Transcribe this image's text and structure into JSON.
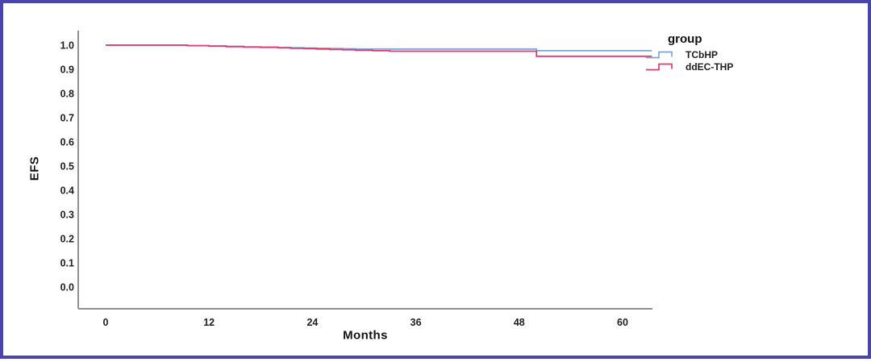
{
  "frame": {
    "border_color": "#4A44B2",
    "background_color": "#FFFFFF"
  },
  "chart_data": {
    "type": "line",
    "subtype": "kaplan_meier_step",
    "title": "",
    "xlabel": "Months",
    "ylabel": "EFS",
    "x_ticks": [
      0,
      12,
      24,
      36,
      48,
      60
    ],
    "y_tick_labels": [
      "1.0",
      "0.9",
      "0.8",
      "0.7",
      "0.6",
      "0.5",
      "0.4",
      "0.3",
      "0.2",
      "0.1",
      "0.0"
    ],
    "xlim": [
      -3.2,
      63.4
    ],
    "ylim": [
      -0.09,
      1.06
    ],
    "grid": false,
    "axis_color": "#909090",
    "legend": {
      "title": "group",
      "position": "top-right",
      "entries": [
        {
          "label": "TCbHP",
          "color": "#7EA6DC"
        },
        {
          "label": "ddEC-THP",
          "color": "#E13A6C"
        }
      ]
    },
    "series": [
      {
        "name": "TCbHP",
        "color": "#7EA6DC",
        "end_x": 63.4,
        "points": [
          [
            0,
            1.0
          ],
          [
            9.5,
            0.998
          ],
          [
            12,
            0.996
          ],
          [
            14,
            0.995
          ],
          [
            16,
            0.993
          ],
          [
            18,
            0.992
          ],
          [
            20,
            0.99
          ],
          [
            21.5,
            0.989
          ],
          [
            23,
            0.988
          ],
          [
            24.5,
            0.987
          ],
          [
            26,
            0.986
          ],
          [
            27.5,
            0.985
          ],
          [
            29,
            0.984
          ],
          [
            50,
            0.977
          ]
        ]
      },
      {
        "name": "ddEC-THP",
        "color": "#E13A6C",
        "end_x": 63.4,
        "points": [
          [
            0,
            1.0
          ],
          [
            9.5,
            0.998
          ],
          [
            12,
            0.996
          ],
          [
            14,
            0.994
          ],
          [
            16,
            0.992
          ],
          [
            18,
            0.991
          ],
          [
            20,
            0.989
          ],
          [
            21.5,
            0.987
          ],
          [
            23,
            0.986
          ],
          [
            24.5,
            0.984
          ],
          [
            26,
            0.982
          ],
          [
            27.5,
            0.981
          ],
          [
            29,
            0.979
          ],
          [
            31,
            0.977
          ],
          [
            33,
            0.975
          ],
          [
            50,
            0.954
          ]
        ]
      }
    ]
  }
}
